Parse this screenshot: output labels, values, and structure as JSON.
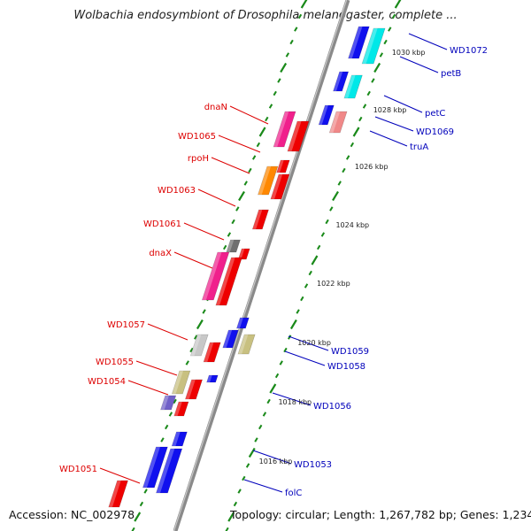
{
  "header": {
    "title": "Wolbachia endosymbiont of Drosophila melanogaster, complete ..."
  },
  "footer": {
    "accession": "Accession: NC_002978",
    "topology": "Topology: circular; Length: 1,267,782 bp; Genes: 1,234"
  },
  "colors": {
    "backbone": "#8a8a8a",
    "ruler": "#1a8a1a",
    "left_label": "#dd0000",
    "right_label": "#0000bb"
  },
  "ruler_labels": [
    "1016 kbp",
    "1018 kbp",
    "1020 kbp",
    "1022 kbp",
    "1024 kbp",
    "1026 kbp",
    "1028 kbp",
    "1030 kbp"
  ],
  "left_labels": [
    "dnaN",
    "WD1065",
    "rpoH",
    "WD1063",
    "WD1061",
    "dnaX",
    "WD1057",
    "WD1055",
    "WD1054",
    "WD1051"
  ],
  "right_labels": [
    "WD1072",
    "petB",
    "petC",
    "WD1069",
    "truA",
    "WD1059",
    "WD1058",
    "WD1056",
    "WD1053",
    "folC"
  ]
}
